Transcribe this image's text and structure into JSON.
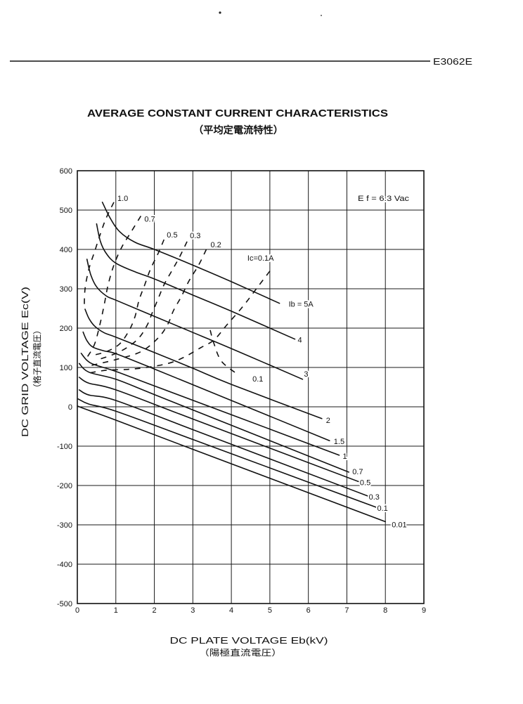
{
  "header": {
    "doc_code": "E3062E"
  },
  "chart_data": {
    "type": "line",
    "title": "AVERAGE CONSTANT CURRENT CHARACTERISTICS",
    "subtitle": "（平均定電流特性）",
    "xlabel": "DC PLATE VOLTAGE Eb(kV)",
    "xlabel_sub": "（陽極直流電圧）",
    "ylabel": "DC GRID VOLTAGE Ec(V)",
    "ylabel_sub": "（格子直流電圧）",
    "annotation": "E f = 6.3 Vac",
    "xlim": [
      0,
      9
    ],
    "ylim": [
      -500,
      600
    ],
    "x_ticks": [
      0,
      1,
      2,
      3,
      4,
      5,
      6,
      7,
      8,
      9
    ],
    "y_ticks": [
      600,
      500,
      400,
      300,
      200,
      100,
      0,
      -100,
      -200,
      -300,
      -400,
      -500
    ],
    "grid": true,
    "line_color": "#111111",
    "series": [
      {
        "name": "Ib = 5A",
        "style": "solid",
        "points": [
          [
            0.65,
            520
          ],
          [
            0.85,
            480
          ],
          [
            1.1,
            445
          ],
          [
            1.5,
            418
          ],
          [
            2.0,
            400
          ],
          [
            3.0,
            360
          ],
          [
            4.0,
            318
          ],
          [
            5.25,
            263
          ]
        ]
      },
      {
        "name": "4",
        "style": "solid",
        "points": [
          [
            0.5,
            465
          ],
          [
            0.6,
            420
          ],
          [
            0.75,
            390
          ],
          [
            1.0,
            365
          ],
          [
            1.5,
            343
          ],
          [
            2.0,
            325
          ],
          [
            3.0,
            284
          ],
          [
            4.0,
            243
          ],
          [
            5.65,
            172
          ]
        ]
      },
      {
        "name": "3",
        "style": "solid",
        "points": [
          [
            0.25,
            375
          ],
          [
            0.35,
            335
          ],
          [
            0.5,
            305
          ],
          [
            0.75,
            282
          ],
          [
            1.0,
            271
          ],
          [
            2.0,
            230
          ],
          [
            3.0,
            189
          ],
          [
            4.0,
            148
          ],
          [
            5.85,
            70
          ]
        ]
      },
      {
        "name": "2",
        "style": "solid",
        "points": [
          [
            0.2,
            248
          ],
          [
            0.3,
            225
          ],
          [
            0.45,
            205
          ],
          [
            0.7,
            188
          ],
          [
            1.0,
            177
          ],
          [
            2.0,
            138
          ],
          [
            3.0,
            98
          ],
          [
            4.0,
            57
          ],
          [
            6.35,
            -30
          ]
        ]
      },
      {
        "name": "1.5",
        "style": "solid",
        "points": [
          [
            0.15,
            190
          ],
          [
            0.25,
            168
          ],
          [
            0.4,
            152
          ],
          [
            0.7,
            142
          ],
          [
            1.0,
            135
          ],
          [
            2.0,
            96
          ],
          [
            4.0,
            16
          ],
          [
            6.55,
            -86
          ]
        ]
      },
      {
        "name": "1",
        "style": "solid",
        "points": [
          [
            0.1,
            136
          ],
          [
            0.25,
            118
          ],
          [
            0.45,
            107
          ],
          [
            1.0,
            90
          ],
          [
            2.0,
            53
          ],
          [
            4.0,
            -20
          ],
          [
            6.8,
            -123
          ]
        ]
      },
      {
        "name": "0.7",
        "style": "solid",
        "points": [
          [
            0.05,
            110
          ],
          [
            0.3,
            88
          ],
          [
            1.0,
            70
          ],
          [
            2.0,
            31
          ],
          [
            4.0,
            -47
          ],
          [
            7.05,
            -166
          ]
        ]
      },
      {
        "name": "0.5",
        "style": "solid",
        "points": [
          [
            0.05,
            75
          ],
          [
            0.3,
            60
          ],
          [
            1.0,
            43
          ],
          [
            3.0,
            -31
          ],
          [
            7.3,
            -190
          ]
        ]
      },
      {
        "name": "0.3",
        "style": "solid",
        "points": [
          [
            0.05,
            43
          ],
          [
            0.3,
            30
          ],
          [
            1.0,
            16
          ],
          [
            3.0,
            -58
          ],
          [
            7.55,
            -227
          ]
        ]
      },
      {
        "name": "0.1",
        "style": "solid",
        "points": [
          [
            0.02,
            20
          ],
          [
            0.3,
            7
          ],
          [
            1.0,
            -11
          ],
          [
            3.0,
            -83
          ],
          [
            7.75,
            -255
          ]
        ]
      },
      {
        "name": "0.01",
        "style": "solid",
        "points": [
          [
            0.0,
            2
          ],
          [
            0.3,
            -9
          ],
          [
            1.0,
            -34
          ],
          [
            3.0,
            -108
          ],
          [
            8.0,
            -292
          ]
        ]
      },
      {
        "name": "1.0",
        "style": "dashed",
        "points": [
          [
            0.95,
            520
          ],
          [
            0.75,
            480
          ],
          [
            0.6,
            440
          ],
          [
            0.45,
            395
          ],
          [
            0.3,
            350
          ],
          [
            0.2,
            300
          ],
          [
            0.18,
            250
          ]
        ]
      },
      {
        "name": "0.7",
        "style": "dashed",
        "points": [
          [
            1.65,
            485
          ],
          [
            1.4,
            445
          ],
          [
            1.15,
            405
          ],
          [
            0.95,
            360
          ],
          [
            0.8,
            310
          ],
          [
            0.7,
            260
          ],
          [
            0.6,
            215
          ],
          [
            0.45,
            160
          ],
          [
            0.25,
            125
          ]
        ]
      },
      {
        "name": "0.5",
        "style": "dashed",
        "points": [
          [
            2.25,
            425
          ],
          [
            2.1,
            390
          ],
          [
            1.9,
            350
          ],
          [
            1.75,
            310
          ],
          [
            1.6,
            270
          ],
          [
            1.5,
            230
          ],
          [
            1.35,
            195
          ],
          [
            1.1,
            160
          ],
          [
            0.75,
            140
          ],
          [
            0.35,
            130
          ]
        ]
      },
      {
        "name": "0.3",
        "style": "dashed",
        "points": [
          [
            2.85,
            420
          ],
          [
            2.65,
            380
          ],
          [
            2.45,
            345
          ],
          [
            2.25,
            310
          ],
          [
            2.1,
            275
          ],
          [
            1.95,
            240
          ],
          [
            1.8,
            205
          ],
          [
            1.55,
            170
          ],
          [
            1.1,
            140
          ],
          [
            0.55,
            120
          ]
        ]
      },
      {
        "name": "0.2",
        "style": "dashed",
        "points": [
          [
            3.35,
            400
          ],
          [
            3.15,
            360
          ],
          [
            2.9,
            320
          ],
          [
            2.7,
            280
          ],
          [
            2.5,
            245
          ],
          [
            2.35,
            210
          ],
          [
            2.1,
            175
          ],
          [
            1.65,
            140
          ],
          [
            1.0,
            120
          ],
          [
            0.35,
            105
          ]
        ]
      },
      {
        "name": "Ic=0.1A",
        "style": "dashed",
        "points": [
          [
            5.0,
            345
          ],
          [
            4.65,
            300
          ],
          [
            4.3,
            255
          ],
          [
            3.9,
            210
          ],
          [
            3.55,
            170
          ],
          [
            3.2,
            150
          ],
          [
            2.75,
            125
          ],
          [
            2.35,
            110
          ],
          [
            1.8,
            100
          ],
          [
            1.3,
            95
          ],
          [
            0.75,
            93
          ],
          [
            0.25,
            85
          ]
        ]
      },
      {
        "name": "0.1",
        "style": "dashed",
        "points": [
          [
            3.45,
            195
          ],
          [
            3.55,
            160
          ],
          [
            3.75,
            115
          ],
          [
            4.2,
            80
          ]
        ]
      }
    ]
  }
}
